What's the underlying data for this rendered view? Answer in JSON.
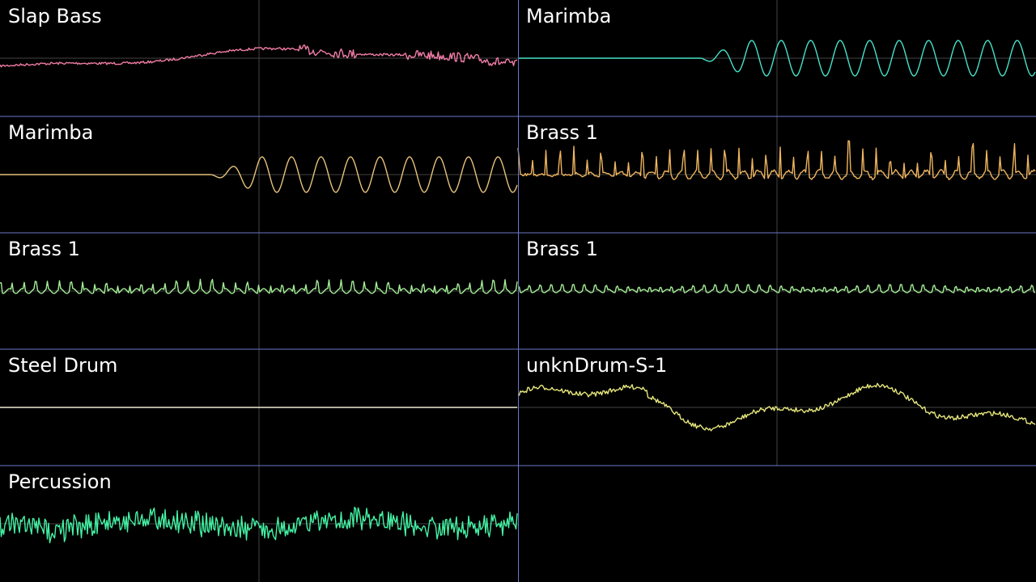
{
  "panels": [
    {
      "label": "Slap Bass",
      "color": "#f07ca6"
    },
    {
      "label": "Marimba",
      "color": "#46e2c8"
    },
    {
      "label": "Marimba",
      "color": "#e6c27a"
    },
    {
      "label": "Brass 1",
      "color": "#eeb45e"
    },
    {
      "label": "Brass 1",
      "color": "#a4ee96"
    },
    {
      "label": "Brass 1",
      "color": "#a4ee96"
    },
    {
      "label": "Steel Drum",
      "color": "#eeeed2"
    },
    {
      "label": "unknDrum-S-1",
      "color": "#e6e67c"
    },
    {
      "label": "Percussion",
      "color": "#44f2a4"
    }
  ]
}
